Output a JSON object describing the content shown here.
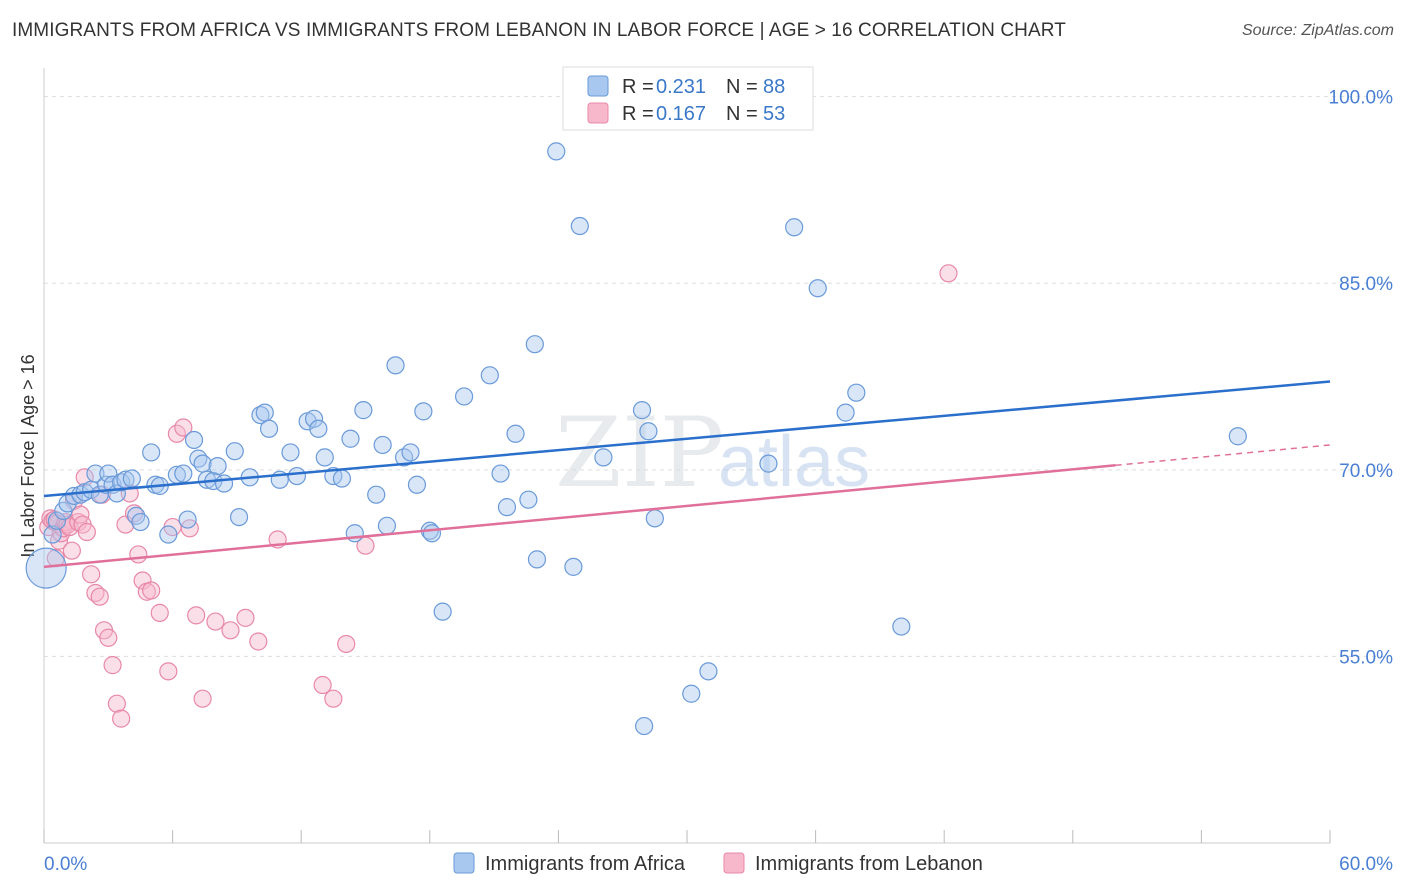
{
  "title": "IMMIGRANTS FROM AFRICA VS IMMIGRANTS FROM LEBANON IN LABOR FORCE | AGE > 16 CORRELATION CHART",
  "source": "Source: ZipAtlas.com",
  "watermark": {
    "zip": "ZIP",
    "atlas": "atlas"
  },
  "legend": {
    "r_label": "R =",
    "n_label": "N =",
    "africa": {
      "r": "0.231",
      "n": "88"
    },
    "lebanon": {
      "r": "0.167",
      "n": "53"
    }
  },
  "colors": {
    "africa_fill": "#a8c8f0",
    "africa_stroke": "#6a9ad8",
    "africa_line": "#2a6fcc",
    "lebanon_fill": "#f7b8cc",
    "lebanon_stroke": "#e888a8",
    "lebanon_line": "#e0709a",
    "tick": "#4a7fd4",
    "grid": "#dddddd"
  },
  "chart_data": {
    "type": "scatter",
    "title": "IMMIGRANTS FROM AFRICA VS IMMIGRANTS FROM LEBANON IN LABOR FORCE | AGE > 16 CORRELATION CHART",
    "xlabel": "",
    "ylabel": "In Labor Force | Age > 16",
    "xlim": [
      0,
      60
    ],
    "ylim": [
      40,
      101.5
    ],
    "x_tick_labels": [
      "0.0%",
      "60.0%"
    ],
    "y_ticks": [
      55,
      70,
      85,
      100
    ],
    "y_tick_labels": [
      "55.0%",
      "70.0%",
      "85.0%",
      "100.0%"
    ],
    "grid": true,
    "legend_position": "top-center",
    "series": [
      {
        "name": "Immigrants from Africa",
        "trend": {
          "x": [
            0,
            60
          ],
          "y": [
            67.9,
            77.1
          ]
        },
        "points": [
          [
            0.1,
            62.1
          ],
          [
            0.4,
            64.8
          ],
          [
            0.6,
            65.9
          ],
          [
            0.9,
            66.7
          ],
          [
            1.1,
            67.3
          ],
          [
            1.4,
            67.9
          ],
          [
            1.7,
            68.0
          ],
          [
            1.9,
            68.2
          ],
          [
            2.2,
            68.4
          ],
          [
            2.4,
            69.7
          ],
          [
            2.6,
            68.0
          ],
          [
            2.9,
            68.8
          ],
          [
            3.0,
            69.7
          ],
          [
            3.2,
            68.8
          ],
          [
            3.4,
            68.1
          ],
          [
            3.6,
            69.0
          ],
          [
            3.8,
            69.2
          ],
          [
            4.1,
            69.3
          ],
          [
            4.3,
            66.3
          ],
          [
            4.5,
            65.8
          ],
          [
            5.0,
            71.4
          ],
          [
            5.2,
            68.8
          ],
          [
            5.4,
            68.7
          ],
          [
            5.8,
            64.8
          ],
          [
            6.2,
            69.6
          ],
          [
            6.5,
            69.7
          ],
          [
            6.7,
            66.0
          ],
          [
            7.0,
            72.4
          ],
          [
            7.2,
            70.9
          ],
          [
            7.4,
            70.5
          ],
          [
            7.6,
            69.2
          ],
          [
            7.9,
            69.1
          ],
          [
            8.1,
            70.3
          ],
          [
            8.4,
            68.9
          ],
          [
            8.9,
            71.5
          ],
          [
            9.1,
            66.2
          ],
          [
            9.6,
            69.4
          ],
          [
            10.1,
            74.4
          ],
          [
            10.3,
            74.6
          ],
          [
            10.5,
            73.3
          ],
          [
            11.0,
            69.2
          ],
          [
            11.5,
            71.4
          ],
          [
            11.8,
            69.5
          ],
          [
            12.3,
            73.9
          ],
          [
            12.6,
            74.1
          ],
          [
            12.8,
            73.3
          ],
          [
            13.1,
            71.0
          ],
          [
            13.5,
            69.5
          ],
          [
            13.9,
            69.3
          ],
          [
            14.3,
            72.5
          ],
          [
            14.5,
            64.9
          ],
          [
            14.9,
            74.8
          ],
          [
            15.5,
            68.0
          ],
          [
            15.8,
            72.0
          ],
          [
            16.0,
            65.5
          ],
          [
            16.4,
            78.4
          ],
          [
            16.8,
            71.0
          ],
          [
            17.1,
            71.4
          ],
          [
            17.4,
            68.8
          ],
          [
            17.7,
            74.7
          ],
          [
            18.0,
            65.1
          ],
          [
            18.1,
            64.9
          ],
          [
            18.6,
            58.6
          ],
          [
            19.6,
            75.9
          ],
          [
            20.8,
            77.6
          ],
          [
            21.3,
            69.7
          ],
          [
            21.6,
            67.0
          ],
          [
            22.0,
            72.9
          ],
          [
            22.6,
            67.6
          ],
          [
            22.9,
            80.1
          ],
          [
            23.0,
            62.8
          ],
          [
            23.9,
            95.6
          ],
          [
            24.7,
            62.2
          ],
          [
            25.0,
            89.6
          ],
          [
            26.1,
            71.0
          ],
          [
            27.9,
            74.8
          ],
          [
            28.2,
            73.1
          ],
          [
            28.5,
            66.1
          ],
          [
            30.2,
            52.0
          ],
          [
            31.0,
            53.8
          ],
          [
            33.8,
            70.5
          ],
          [
            35.0,
            89.5
          ],
          [
            36.1,
            84.6
          ],
          [
            37.4,
            74.6
          ],
          [
            37.9,
            76.2
          ],
          [
            40.0,
            57.4
          ],
          [
            55.7,
            72.7
          ],
          [
            28.0,
            49.4
          ]
        ]
      },
      {
        "name": "Immigrants from Lebanon",
        "trend": {
          "x": [
            0,
            60
          ],
          "y": [
            62.2,
            72.0
          ]
        },
        "trend_solid_to_x": 50,
        "points": [
          [
            0.2,
            65.4
          ],
          [
            0.3,
            66.1
          ],
          [
            0.4,
            65.9
          ],
          [
            0.5,
            66.0
          ],
          [
            0.6,
            65.7
          ],
          [
            0.7,
            64.3
          ],
          [
            0.8,
            64.9
          ],
          [
            0.9,
            65.3
          ],
          [
            1.0,
            65.8
          ],
          [
            1.1,
            65.6
          ],
          [
            1.2,
            65.4
          ],
          [
            1.4,
            67.5
          ],
          [
            1.6,
            65.8
          ],
          [
            1.7,
            66.4
          ],
          [
            1.8,
            65.6
          ],
          [
            2.0,
            65.0
          ],
          [
            2.2,
            61.6
          ],
          [
            2.4,
            60.1
          ],
          [
            2.6,
            59.8
          ],
          [
            2.8,
            57.1
          ],
          [
            3.0,
            56.5
          ],
          [
            3.2,
            54.3
          ],
          [
            3.4,
            51.2
          ],
          [
            3.6,
            50.0
          ],
          [
            3.8,
            65.6
          ],
          [
            4.0,
            68.1
          ],
          [
            4.2,
            66.5
          ],
          [
            4.4,
            63.2
          ],
          [
            4.6,
            61.1
          ],
          [
            4.8,
            60.2
          ],
          [
            5.0,
            60.3
          ],
          [
            5.4,
            58.5
          ],
          [
            5.8,
            53.8
          ],
          [
            6.0,
            65.4
          ],
          [
            6.2,
            72.9
          ],
          [
            6.5,
            73.4
          ],
          [
            6.8,
            65.3
          ],
          [
            7.1,
            58.3
          ],
          [
            7.4,
            51.6
          ],
          [
            8.0,
            57.8
          ],
          [
            8.7,
            57.1
          ],
          [
            9.4,
            58.1
          ],
          [
            10.0,
            56.2
          ],
          [
            10.9,
            64.4
          ],
          [
            13.0,
            52.7
          ],
          [
            13.5,
            51.6
          ],
          [
            14.1,
            56.0
          ],
          [
            15.0,
            63.9
          ],
          [
            42.2,
            85.8
          ],
          [
            1.3,
            63.5
          ],
          [
            1.9,
            69.4
          ],
          [
            2.7,
            68.0
          ],
          [
            0.55,
            62.9
          ]
        ]
      }
    ]
  },
  "bottom_legend": {
    "africa": "Immigrants from Africa",
    "lebanon": "Immigrants from Lebanon"
  }
}
